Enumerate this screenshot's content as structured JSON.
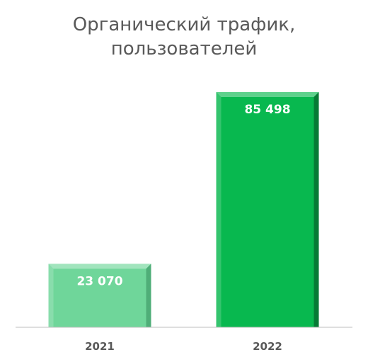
{
  "chart_data": {
    "type": "bar",
    "title": "Органический трафик,\nпользователей",
    "categories": [
      "2021",
      "2022"
    ],
    "values": [
      23070,
      85498
    ],
    "value_labels": [
      "23 070",
      "85 498"
    ],
    "xlabel": "",
    "ylabel": "",
    "ylim": [
      0,
      100000
    ],
    "grid": false,
    "legend": "none",
    "colors": {
      "bar_2021": "#6fd69a",
      "bar_2021_edge": "#4fae78",
      "bar_2022": "#08b84f",
      "bar_2022_edge": "#077a35",
      "axis": "#bfbfbf",
      "title": "#595959",
      "tick": "#595959",
      "data_label": "#ffffff"
    }
  }
}
